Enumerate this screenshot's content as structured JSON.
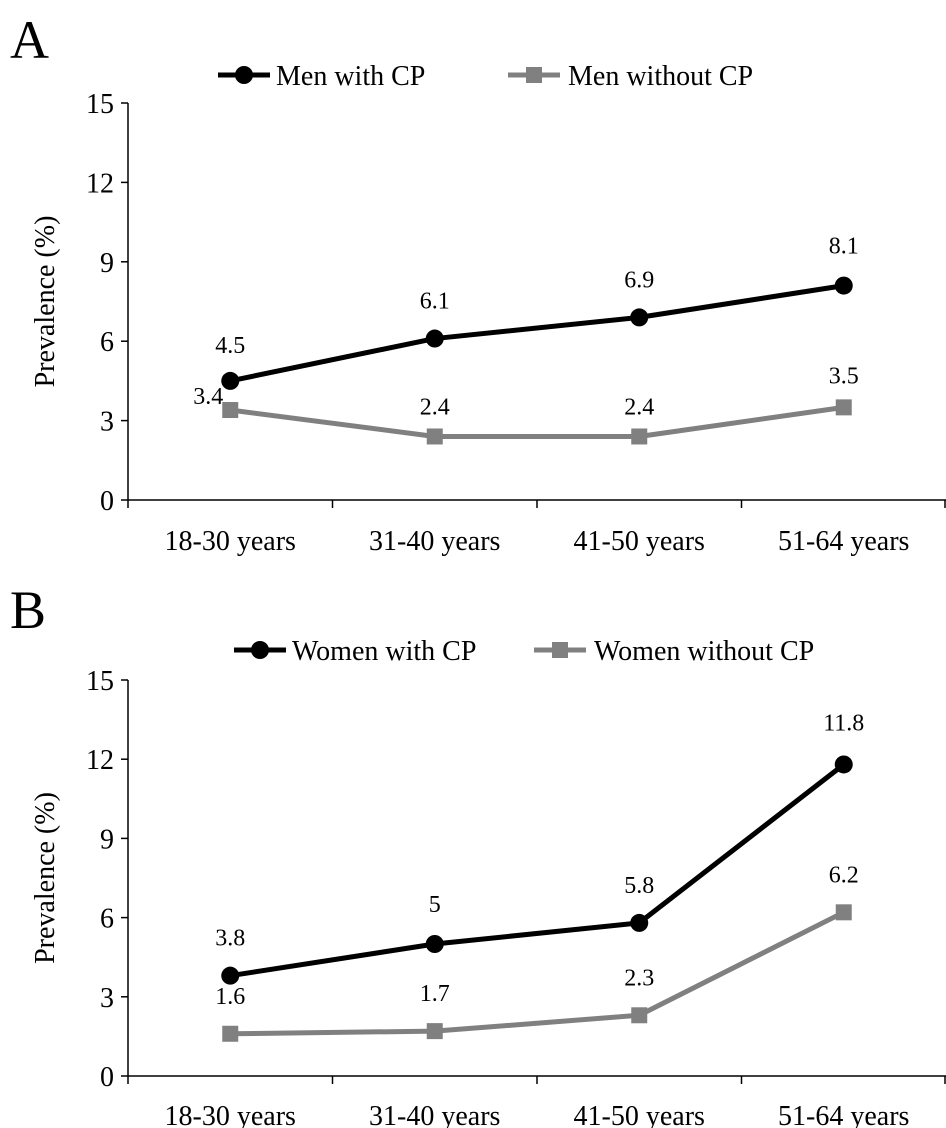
{
  "chart_data": [
    {
      "panel_label": "A",
      "type": "line",
      "categories": [
        "18-30 years",
        "31-40 years",
        "41-50 years",
        "51-64 years"
      ],
      "ylabel": "Prevalence (%)",
      "ylim": [
        0,
        15
      ],
      "yticks": [
        0,
        3,
        6,
        9,
        12,
        15
      ],
      "grid": false,
      "legend_position": "top",
      "series": [
        {
          "name": "Men with CP",
          "values": [
            4.5,
            6.1,
            6.9,
            8.1
          ],
          "labels": [
            "4.5",
            "6.1",
            "6.9",
            "8.1"
          ],
          "color": "#000000",
          "marker": "circle"
        },
        {
          "name": "Men without CP",
          "values": [
            3.4,
            2.4,
            2.4,
            3.5
          ],
          "labels": [
            "3.4",
            "2.4",
            "2.4",
            "3.5"
          ],
          "color": "#808080",
          "marker": "square"
        }
      ]
    },
    {
      "panel_label": "B",
      "type": "line",
      "categories": [
        "18-30 years",
        "31-40 years",
        "41-50 years",
        "51-64 years"
      ],
      "ylabel": "Prevalence (%)",
      "ylim": [
        0,
        15
      ],
      "yticks": [
        0,
        3,
        6,
        9,
        12,
        15
      ],
      "grid": false,
      "legend_position": "top",
      "series": [
        {
          "name": "Women with CP",
          "values": [
            3.8,
            5,
            5.8,
            11.8
          ],
          "labels": [
            "3.8",
            "5",
            "5.8",
            "11.8"
          ],
          "color": "#000000",
          "marker": "circle"
        },
        {
          "name": "Women without CP",
          "values": [
            1.6,
            1.7,
            2.3,
            6.2
          ],
          "labels": [
            "1.6",
            "1.7",
            "2.3",
            "6.2"
          ],
          "color": "#808080",
          "marker": "square"
        }
      ]
    }
  ]
}
